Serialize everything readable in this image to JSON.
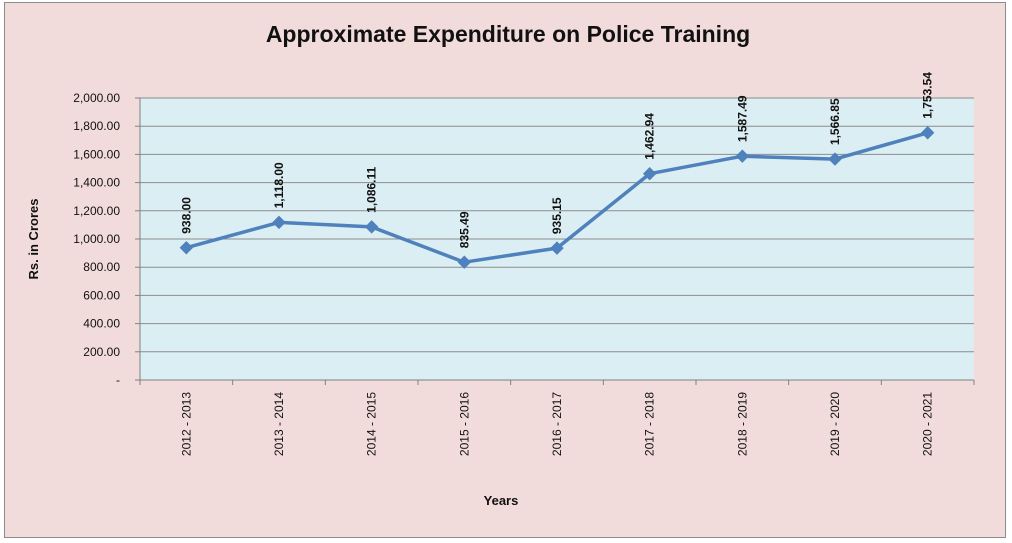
{
  "chart_data": {
    "type": "line",
    "title": "Approximate Expenditure on Police Training",
    "xlabel": "Years",
    "ylabel": "Rs. in Crores",
    "ylim": [
      0,
      2000
    ],
    "y_ticks": [
      "-",
      "200.00",
      "400.00",
      "600.00",
      "800.00",
      "1,000.00",
      "1,200.00",
      "1,400.00",
      "1,600.00",
      "1,800.00",
      "2,000.00"
    ],
    "categories": [
      "2012 - 2013",
      "2013 - 2014",
      "2014 - 2015",
      "2015 - 2016",
      "2016 - 2017",
      "2017 - 2018",
      "2018 - 2019",
      "2019 - 2020",
      "2020 - 2021"
    ],
    "series": [
      {
        "values": [
          938.0,
          1118.0,
          1086.11,
          835.49,
          935.15,
          1462.94,
          1587.49,
          1566.85,
          1753.54
        ],
        "labels": [
          "938.00",
          "1,118.00",
          "1,086.11",
          "835.49",
          "935.15",
          "1,462.94",
          "1,587.49",
          "1,566.85",
          "1,753.54"
        ]
      }
    ],
    "grid": true,
    "legend": "none",
    "colors": {
      "background": "#f2dcdb",
      "plot_area": "#dbeef3",
      "line": "#4f81bd",
      "gridline": "#8c8c8c"
    }
  }
}
